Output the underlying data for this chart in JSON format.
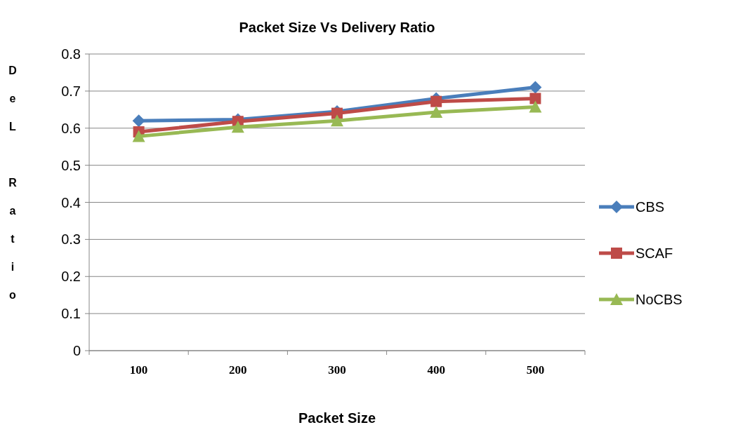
{
  "chart_data": {
    "type": "line",
    "title": "Packet Size Vs Delivery Ratio",
    "xlabel": "Packet Size",
    "ylabel": "DeL Ratio",
    "categories": [
      "100",
      "200",
      "300",
      "400",
      "500"
    ],
    "series": [
      {
        "name": "CBS",
        "color": "#4a7ebb",
        "values": [
          0.62,
          0.623,
          0.645,
          0.68,
          0.71
        ],
        "marker": "diamond"
      },
      {
        "name": "SCAF",
        "color": "#be4b48",
        "values": [
          0.59,
          0.618,
          0.64,
          0.672,
          0.68
        ],
        "marker": "square"
      },
      {
        "name": "NoCBS",
        "color": "#98b954",
        "values": [
          0.578,
          0.603,
          0.62,
          0.643,
          0.657
        ],
        "marker": "triangle"
      }
    ],
    "ylim": [
      0,
      0.8
    ],
    "yticks": [
      0,
      0.1,
      0.2,
      0.3,
      0.4,
      0.5,
      0.6,
      0.7,
      0.8
    ],
    "grid": "y",
    "legend": "right"
  }
}
